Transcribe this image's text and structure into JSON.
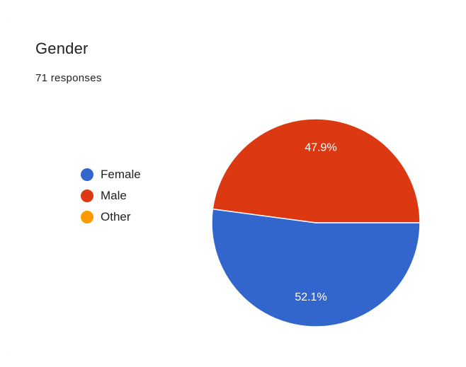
{
  "card": {
    "title": "Gender",
    "subtitle": "71 responses"
  },
  "chart_data": {
    "type": "pie",
    "title": "Gender",
    "subtitle": "71 responses",
    "legend_position": "left",
    "slices": [
      {
        "label": "Female",
        "value": 52.1,
        "display": "52.1%",
        "color": "#3366cc"
      },
      {
        "label": "Male",
        "value": 47.9,
        "display": "47.9%",
        "color": "#dc3912"
      },
      {
        "label": "Other",
        "value": 0,
        "display": "",
        "color": "#ff9900"
      }
    ]
  }
}
